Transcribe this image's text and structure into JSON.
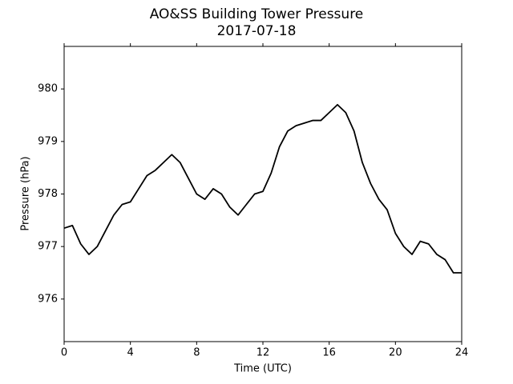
{
  "chart_data": {
    "type": "line",
    "title": "AO&SS Building Tower Pressure",
    "subtitle": "2017-07-18",
    "x_label": "Time (UTC)",
    "y_label": "Pressure (hPa)",
    "x": [
      0,
      0.5,
      1,
      1.5,
      2,
      2.5,
      3,
      3.5,
      4,
      4.5,
      5,
      5.5,
      6,
      6.5,
      7,
      7.5,
      8,
      8.5,
      9,
      9.5,
      10,
      10.5,
      11,
      11.5,
      12,
      12.5,
      13,
      13.5,
      14,
      14.5,
      15,
      15.5,
      16,
      16.5,
      17,
      17.5,
      18,
      18.5,
      19,
      19.5,
      20,
      20.5,
      21,
      21.5,
      22,
      22.5,
      23,
      23.5,
      24
    ],
    "series": [
      {
        "name": "Pressure",
        "color": "#000000",
        "values": [
          977.35,
          977.4,
          977.05,
          976.85,
          977.0,
          977.3,
          977.6,
          977.8,
          977.85,
          978.1,
          978.35,
          978.45,
          978.6,
          978.75,
          978.6,
          978.3,
          978.0,
          977.9,
          978.1,
          978.0,
          977.75,
          977.6,
          977.8,
          978.0,
          978.05,
          978.4,
          978.9,
          979.2,
          979.3,
          979.35,
          979.4,
          979.4,
          979.55,
          979.7,
          979.55,
          979.2,
          978.6,
          978.2,
          977.9,
          977.7,
          977.25,
          977.0,
          976.85,
          977.1,
          977.05,
          976.85,
          976.75,
          976.5,
          976.5
        ]
      }
    ],
    "xlim": [
      0,
      24
    ],
    "xticks": [
      0,
      4,
      8,
      12,
      16,
      20,
      24
    ],
    "ylim": [
      975.19,
      980.81
    ],
    "yticks": [
      976,
      977,
      978,
      979,
      980
    ],
    "grid": false
  }
}
